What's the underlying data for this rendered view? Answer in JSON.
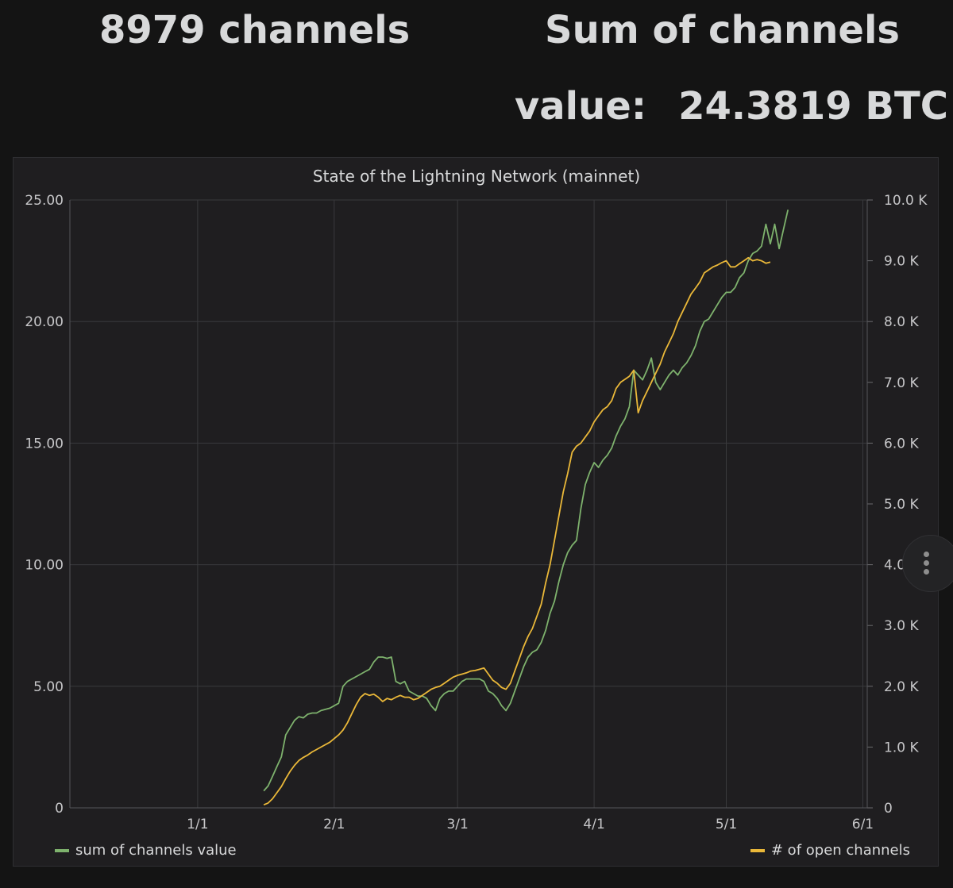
{
  "header": {
    "channels_stat": "8979 channels",
    "sum_line1": "Sum of channels",
    "sum_line2_label": "value:",
    "sum_line2_value": "24.3819 BTC"
  },
  "panel": {
    "title": "State of the Lightning Network (mainnet)",
    "menu_icon": "vertical-ellipsis-icon"
  },
  "chart_data": {
    "type": "line",
    "title": "State of the Lightning Network (mainnet)",
    "x_ticks": [
      "1/1",
      "2/1",
      "3/1",
      "4/1",
      "5/1",
      "6/1"
    ],
    "x_tick_days": [
      0,
      31,
      59,
      90,
      120,
      151
    ],
    "xlim_days": [
      -29,
      152
    ],
    "y_left": {
      "ticks": [
        "0",
        "5.00",
        "10.00",
        "15.00",
        "20.00",
        "25.00"
      ],
      "lim": [
        0,
        25
      ]
    },
    "y_right": {
      "ticks": [
        "0",
        "1.0 K",
        "2.0 K",
        "3.0 K",
        "4.0 K",
        "5.0 K",
        "6.0 K",
        "7.0 K",
        "8.0 K",
        "9.0 K",
        "10.0 K"
      ],
      "lim": [
        0,
        10000
      ]
    },
    "grid": true,
    "legend": [
      {
        "name": "sum of channels value",
        "color": "#7eb26d",
        "placement": "bottom-left"
      },
      {
        "name": "# of open channels",
        "color": "#eab839",
        "placement": "bottom-right"
      }
    ],
    "series": [
      {
        "name": "sum of channels value",
        "axis": "left",
        "color": "#7eb26d",
        "points": [
          [
            15,
            0.7
          ],
          [
            16,
            0.9
          ],
          [
            17,
            1.3
          ],
          [
            18,
            1.7
          ],
          [
            19,
            2.1
          ],
          [
            20,
            3.0
          ],
          [
            21,
            3.3
          ],
          [
            22,
            3.6
          ],
          [
            23,
            3.75
          ],
          [
            24,
            3.7
          ],
          [
            25,
            3.85
          ],
          [
            26,
            3.9
          ],
          [
            27,
            3.9
          ],
          [
            28,
            4.0
          ],
          [
            30,
            4.1
          ],
          [
            32,
            4.3
          ],
          [
            33,
            5.0
          ],
          [
            34,
            5.2
          ],
          [
            35,
            5.3
          ],
          [
            37,
            5.5
          ],
          [
            38,
            5.6
          ],
          [
            39,
            5.7
          ],
          [
            40,
            6.0
          ],
          [
            41,
            6.2
          ],
          [
            42,
            6.2
          ],
          [
            43,
            6.15
          ],
          [
            44,
            6.2
          ],
          [
            45,
            5.2
          ],
          [
            46,
            5.1
          ],
          [
            47,
            5.2
          ],
          [
            48,
            4.8
          ],
          [
            49,
            4.7
          ],
          [
            50,
            4.6
          ],
          [
            51,
            4.6
          ],
          [
            52,
            4.5
          ],
          [
            53,
            4.2
          ],
          [
            54,
            4.0
          ],
          [
            55,
            4.5
          ],
          [
            56,
            4.7
          ],
          [
            57,
            4.8
          ],
          [
            58,
            4.8
          ],
          [
            59,
            5.0
          ],
          [
            60,
            5.2
          ],
          [
            61,
            5.3
          ],
          [
            62,
            5.3
          ],
          [
            63,
            5.3
          ],
          [
            64,
            5.3
          ],
          [
            65,
            5.2
          ],
          [
            66,
            4.8
          ],
          [
            67,
            4.7
          ],
          [
            68,
            4.5
          ],
          [
            69,
            4.2
          ],
          [
            70,
            4.0
          ],
          [
            71,
            4.3
          ],
          [
            72,
            4.8
          ],
          [
            73,
            5.3
          ],
          [
            74,
            5.8
          ],
          [
            75,
            6.2
          ],
          [
            76,
            6.4
          ],
          [
            77,
            6.5
          ],
          [
            78,
            6.8
          ],
          [
            79,
            7.3
          ],
          [
            80,
            8.0
          ],
          [
            81,
            8.5
          ],
          [
            82,
            9.3
          ],
          [
            83,
            10.0
          ],
          [
            84,
            10.5
          ],
          [
            85,
            10.8
          ],
          [
            86,
            11.0
          ],
          [
            87,
            12.3
          ],
          [
            88,
            13.3
          ],
          [
            89,
            13.8
          ],
          [
            90,
            14.2
          ],
          [
            91,
            14.0
          ],
          [
            92,
            14.3
          ],
          [
            93,
            14.5
          ],
          [
            94,
            14.8
          ],
          [
            95,
            15.3
          ],
          [
            96,
            15.7
          ],
          [
            97,
            16.0
          ],
          [
            98,
            16.5
          ],
          [
            99,
            18.0
          ],
          [
            100,
            17.8
          ],
          [
            101,
            17.6
          ],
          [
            102,
            18.0
          ],
          [
            103,
            18.5
          ],
          [
            104,
            17.5
          ],
          [
            105,
            17.2
          ],
          [
            106,
            17.5
          ],
          [
            107,
            17.8
          ],
          [
            108,
            18.0
          ],
          [
            109,
            17.8
          ],
          [
            110,
            18.1
          ],
          [
            111,
            18.3
          ],
          [
            112,
            18.6
          ],
          [
            113,
            19.0
          ],
          [
            114,
            19.6
          ],
          [
            115,
            20.0
          ],
          [
            116,
            20.1
          ],
          [
            117,
            20.4
          ],
          [
            118,
            20.7
          ],
          [
            119,
            21.0
          ],
          [
            120,
            21.2
          ],
          [
            121,
            21.2
          ],
          [
            122,
            21.4
          ],
          [
            123,
            21.8
          ],
          [
            124,
            22.0
          ],
          [
            125,
            22.5
          ],
          [
            126,
            22.8
          ],
          [
            127,
            22.9
          ],
          [
            128,
            23.1
          ],
          [
            129,
            24.0
          ],
          [
            130,
            23.2
          ],
          [
            131,
            24.0
          ],
          [
            132,
            23.0
          ],
          [
            133,
            23.8
          ],
          [
            134,
            24.6
          ]
        ]
      },
      {
        "name": "# of open channels",
        "axis": "right",
        "color": "#eab839",
        "points": [
          [
            15,
            50
          ],
          [
            16,
            80
          ],
          [
            17,
            150
          ],
          [
            18,
            250
          ],
          [
            19,
            350
          ],
          [
            20,
            480
          ],
          [
            21,
            600
          ],
          [
            22,
            700
          ],
          [
            23,
            780
          ],
          [
            24,
            830
          ],
          [
            25,
            870
          ],
          [
            26,
            920
          ],
          [
            27,
            960
          ],
          [
            28,
            1000
          ],
          [
            30,
            1080
          ],
          [
            32,
            1200
          ],
          [
            33,
            1280
          ],
          [
            34,
            1400
          ],
          [
            35,
            1550
          ],
          [
            36,
            1700
          ],
          [
            37,
            1820
          ],
          [
            38,
            1880
          ],
          [
            39,
            1850
          ],
          [
            40,
            1870
          ],
          [
            41,
            1820
          ],
          [
            42,
            1750
          ],
          [
            43,
            1800
          ],
          [
            44,
            1780
          ],
          [
            45,
            1820
          ],
          [
            46,
            1850
          ],
          [
            47,
            1820
          ],
          [
            48,
            1820
          ],
          [
            49,
            1780
          ],
          [
            50,
            1800
          ],
          [
            51,
            1850
          ],
          [
            52,
            1900
          ],
          [
            53,
            1950
          ],
          [
            54,
            1980
          ],
          [
            55,
            2000
          ],
          [
            56,
            2050
          ],
          [
            57,
            2100
          ],
          [
            58,
            2150
          ],
          [
            59,
            2180
          ],
          [
            60,
            2200
          ],
          [
            61,
            2220
          ],
          [
            62,
            2250
          ],
          [
            63,
            2260
          ],
          [
            64,
            2280
          ],
          [
            65,
            2300
          ],
          [
            66,
            2200
          ],
          [
            67,
            2100
          ],
          [
            68,
            2050
          ],
          [
            69,
            1980
          ],
          [
            70,
            1950
          ],
          [
            71,
            2050
          ],
          [
            72,
            2250
          ],
          [
            73,
            2450
          ],
          [
            74,
            2650
          ],
          [
            75,
            2820
          ],
          [
            76,
            2950
          ],
          [
            77,
            3150
          ],
          [
            78,
            3350
          ],
          [
            79,
            3700
          ],
          [
            80,
            4000
          ],
          [
            81,
            4400
          ],
          [
            82,
            4800
          ],
          [
            83,
            5200
          ],
          [
            84,
            5500
          ],
          [
            85,
            5850
          ],
          [
            86,
            5950
          ],
          [
            87,
            6000
          ],
          [
            88,
            6100
          ],
          [
            89,
            6200
          ],
          [
            90,
            6350
          ],
          [
            91,
            6450
          ],
          [
            92,
            6550
          ],
          [
            93,
            6600
          ],
          [
            94,
            6700
          ],
          [
            95,
            6900
          ],
          [
            96,
            7000
          ],
          [
            97,
            7050
          ],
          [
            98,
            7100
          ],
          [
            99,
            7200
          ],
          [
            100,
            6500
          ],
          [
            101,
            6700
          ],
          [
            102,
            6850
          ],
          [
            103,
            7000
          ],
          [
            104,
            7150
          ],
          [
            105,
            7300
          ],
          [
            106,
            7500
          ],
          [
            107,
            7650
          ],
          [
            108,
            7800
          ],
          [
            109,
            8000
          ],
          [
            110,
            8150
          ],
          [
            111,
            8300
          ],
          [
            112,
            8450
          ],
          [
            113,
            8550
          ],
          [
            114,
            8650
          ],
          [
            115,
            8800
          ],
          [
            116,
            8850
          ],
          [
            117,
            8900
          ],
          [
            118,
            8930
          ],
          [
            119,
            8970
          ],
          [
            120,
            9000
          ],
          [
            121,
            8900
          ],
          [
            122,
            8900
          ],
          [
            123,
            8950
          ],
          [
            124,
            9000
          ],
          [
            125,
            9050
          ],
          [
            126,
            9000
          ],
          [
            127,
            9020
          ],
          [
            128,
            9000
          ],
          [
            129,
            8960
          ],
          [
            130,
            8979
          ]
        ]
      }
    ]
  }
}
